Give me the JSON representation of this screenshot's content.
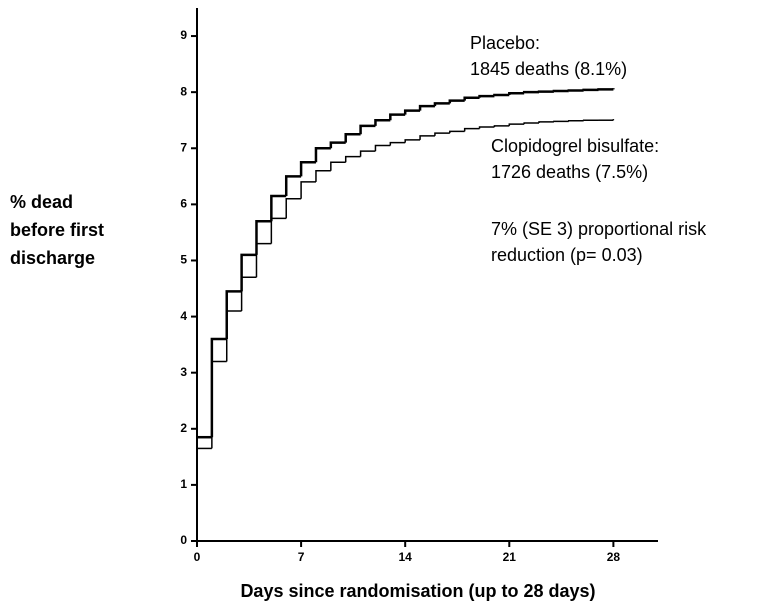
{
  "chart_data": {
    "type": "step",
    "x_label": "Days since randomisation (up to 28 days)",
    "y_label": [
      "% dead",
      "before first",
      "discharge"
    ],
    "x": [
      0,
      1,
      2,
      3,
      4,
      5,
      6,
      7,
      8,
      9,
      10,
      11,
      12,
      13,
      14,
      15,
      16,
      17,
      18,
      19,
      20,
      21,
      22,
      23,
      24,
      25,
      26,
      27,
      28
    ],
    "series": [
      {
        "name": "Placebo",
        "color": "#000000",
        "width": 2.5,
        "values": [
          1.85,
          3.6,
          4.45,
          5.1,
          5.7,
          6.15,
          6.5,
          6.75,
          7.0,
          7.1,
          7.25,
          7.4,
          7.5,
          7.6,
          7.67,
          7.75,
          7.8,
          7.85,
          7.9,
          7.93,
          7.95,
          7.98,
          8.0,
          8.01,
          8.02,
          8.03,
          8.04,
          8.05,
          8.07
        ]
      },
      {
        "name": "Clopidogrel bisulfate",
        "color": "#000000",
        "width": 1.5,
        "values": [
          1.65,
          3.2,
          4.1,
          4.7,
          5.3,
          5.75,
          6.1,
          6.4,
          6.6,
          6.75,
          6.85,
          6.95,
          7.05,
          7.1,
          7.15,
          7.22,
          7.27,
          7.3,
          7.35,
          7.38,
          7.4,
          7.43,
          7.45,
          7.47,
          7.48,
          7.49,
          7.5,
          7.5,
          7.52
        ]
      }
    ],
    "annotations": [
      [
        "Placebo:",
        "1845 deaths (8.1%)"
      ],
      [
        "Clopidogrel bisulfate:",
        "1726 deaths (7.5%)"
      ],
      [
        "7% (SE 3) proportional risk",
        "reduction (p= 0.03)"
      ]
    ],
    "xlim": [
      0,
      31
    ],
    "ylim": [
      0,
      9.5
    ],
    "xticks": [
      0,
      7,
      14,
      21,
      28
    ],
    "yticks": [
      0,
      1,
      2,
      3,
      4,
      5,
      6,
      7,
      8,
      9
    ]
  }
}
